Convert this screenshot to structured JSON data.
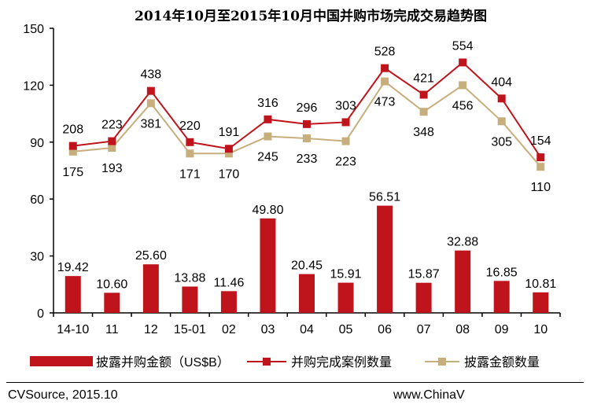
{
  "chart_data": {
    "type": "bar+line",
    "title": "2014年10月至2015年10月中国并购市场完成交易趋势图",
    "categories": [
      "14-10",
      "11",
      "12",
      "15-01",
      "02",
      "03",
      "04",
      "05",
      "06",
      "07",
      "08",
      "09",
      "10"
    ],
    "ylim": [
      0,
      150
    ],
    "yticks": [
      0,
      30,
      60,
      90,
      120,
      150
    ],
    "grid": false,
    "legend_position": "bottom",
    "series": [
      {
        "name": "披露并购金额（US$B）",
        "kind": "bar",
        "color": "#c0141c",
        "values": [
          19.42,
          10.6,
          25.6,
          13.88,
          11.46,
          49.8,
          20.45,
          15.91,
          56.51,
          15.87,
          32.88,
          16.85,
          10.81
        ],
        "labels": [
          "19.42",
          "10.60",
          "25.60",
          "13.88",
          "11.46",
          "49.80",
          "20.45",
          "15.91",
          "56.51",
          "15.87",
          "32.88",
          "16.85",
          "10.81"
        ]
      },
      {
        "name": "并购完成案例数量",
        "kind": "line",
        "color": "#c0141c",
        "plot_values": [
          88,
          90.5,
          117,
          90,
          86.5,
          102,
          99.5,
          100.5,
          129,
          115,
          132,
          113,
          82
        ],
        "labels": [
          "208",
          "223",
          "438",
          "220",
          "191",
          "316",
          "296",
          "303",
          "528",
          "421",
          "554",
          "404",
          "154"
        ]
      },
      {
        "name": "披露金额数量",
        "kind": "line",
        "color": "#c7ae7c",
        "plot_values": [
          85,
          87,
          110.5,
          84,
          84,
          93,
          92,
          90.5,
          122,
          106,
          120,
          101,
          77
        ],
        "labels": [
          "175",
          "193",
          "381",
          "171",
          "170",
          "245",
          "233",
          "223",
          "473",
          "348",
          "456",
          "305",
          "110"
        ]
      }
    ]
  },
  "footer": {
    "source": "CVSource, 2015.10",
    "website": "www.ChinaV"
  }
}
